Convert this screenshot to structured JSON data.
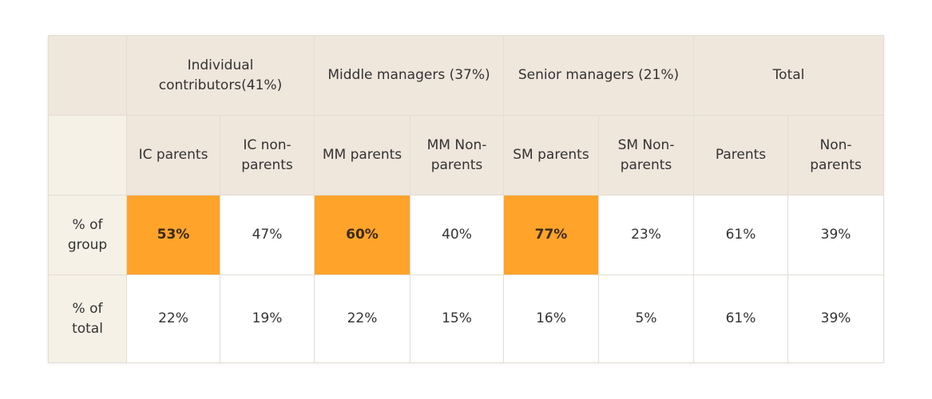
{
  "chart_data": {
    "type": "table",
    "group_headers": [
      {
        "label": "Individual contributors(41%)"
      },
      {
        "label": "Middle managers (37%)"
      },
      {
        "label": "Senior managers (21%)"
      },
      {
        "label": "Total"
      }
    ],
    "columns": [
      "IC parents",
      "IC non-parents",
      "MM parents",
      "MM Non-parents",
      "SM parents",
      "SM Non-parents",
      "Parents",
      "Non-parents"
    ],
    "rows": [
      {
        "label": "% of group",
        "values": [
          "53%",
          "47%",
          "60%",
          "40%",
          "77%",
          "23%",
          "61%",
          "39%"
        ],
        "highlighted": [
          true,
          false,
          true,
          false,
          true,
          false,
          false,
          false
        ]
      },
      {
        "label": "% of total",
        "values": [
          "22%",
          "19%",
          "22%",
          "15%",
          "16%",
          "5%",
          "61%",
          "39%"
        ],
        "highlighted": [
          false,
          false,
          false,
          false,
          false,
          false,
          false,
          false
        ]
      }
    ]
  },
  "colors": {
    "header_bg": "#efe6dc",
    "stub_bg": "#f5f1e7",
    "highlight": "#ffa32b",
    "border": "#e3ddd3"
  }
}
